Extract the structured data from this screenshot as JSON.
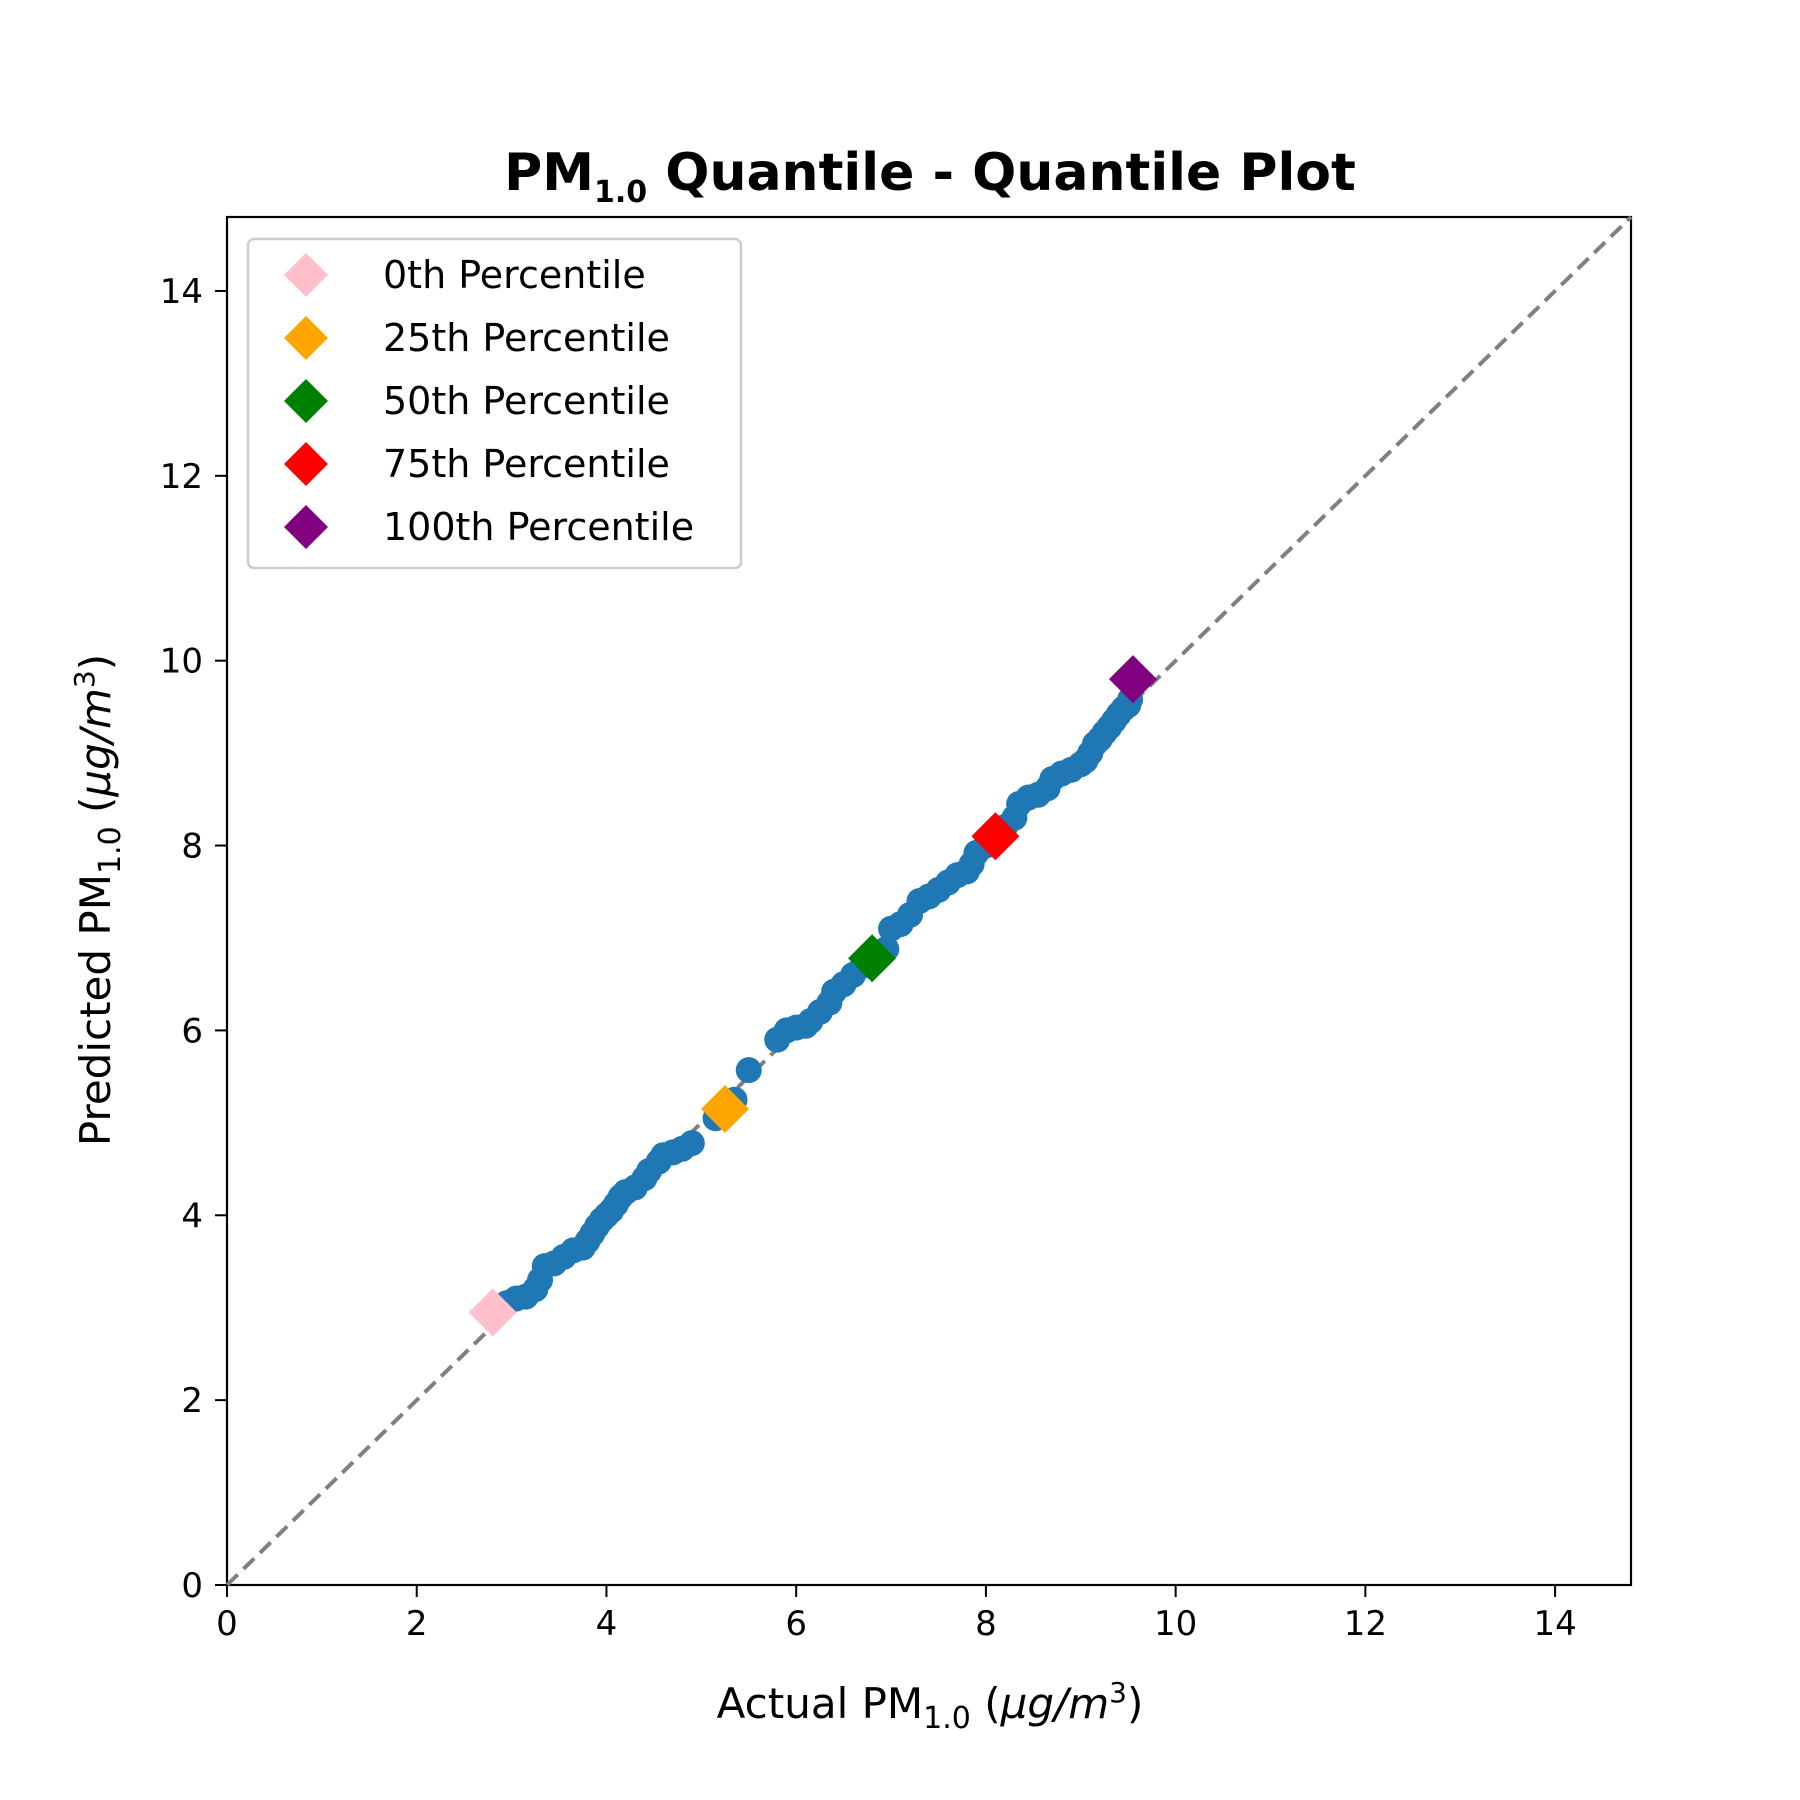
{
  "chart_data": {
    "type": "scatter",
    "title": {
      "main": "PM",
      "sub": "1.0",
      "rest": " Quantile - Quantile Plot"
    },
    "xlabel": {
      "prefix": "Actual PM",
      "sub": "1.0",
      "unit_open": " (",
      "unit_mu": "μg",
      "unit_slash": "/",
      "unit_m": "m",
      "unit_sup": "3",
      "unit_close": ")"
    },
    "ylabel": {
      "prefix": "Predicted PM",
      "sub": "1.0",
      "unit_open": " (",
      "unit_mu": "μg",
      "unit_slash": "/",
      "unit_m": "m",
      "unit_sup": "3",
      "unit_close": ")"
    },
    "xlim": [
      0,
      14.8
    ],
    "ylim": [
      0,
      14.8
    ],
    "xticks": [
      "0",
      "2",
      "4",
      "6",
      "8",
      "10",
      "12",
      "14"
    ],
    "yticks": [
      "0",
      "2",
      "4",
      "6",
      "8",
      "10",
      "12",
      "14"
    ],
    "grid": false,
    "legend_placement": "upper-left",
    "reference_line": {
      "from": [
        0,
        0
      ],
      "to": [
        14.8,
        14.8
      ],
      "style": "dashed",
      "color": "#808080"
    },
    "series": [
      {
        "color": "#1f77b4",
        "marker": "circle",
        "points": [
          [
            2.95,
            3.05
          ],
          [
            3.05,
            3.1
          ],
          [
            3.15,
            3.12
          ],
          [
            3.25,
            3.2
          ],
          [
            3.3,
            3.3
          ],
          [
            3.35,
            3.45
          ],
          [
            3.45,
            3.48
          ],
          [
            3.55,
            3.55
          ],
          [
            3.65,
            3.62
          ],
          [
            3.75,
            3.65
          ],
          [
            3.8,
            3.72
          ],
          [
            3.85,
            3.8
          ],
          [
            3.9,
            3.88
          ],
          [
            3.95,
            3.95
          ],
          [
            4.0,
            4.0
          ],
          [
            4.05,
            4.05
          ],
          [
            4.1,
            4.12
          ],
          [
            4.15,
            4.2
          ],
          [
            4.2,
            4.25
          ],
          [
            4.3,
            4.3
          ],
          [
            4.4,
            4.4
          ],
          [
            4.45,
            4.48
          ],
          [
            4.55,
            4.58
          ],
          [
            4.6,
            4.65
          ],
          [
            4.7,
            4.68
          ],
          [
            4.8,
            4.72
          ],
          [
            4.9,
            4.78
          ],
          [
            5.15,
            5.05
          ],
          [
            5.35,
            5.25
          ],
          [
            5.5,
            5.57
          ],
          [
            5.8,
            5.9
          ],
          [
            5.9,
            6.0
          ],
          [
            6.0,
            6.03
          ],
          [
            6.1,
            6.05
          ],
          [
            6.15,
            6.1
          ],
          [
            6.25,
            6.2
          ],
          [
            6.35,
            6.3
          ],
          [
            6.4,
            6.42
          ],
          [
            6.5,
            6.5
          ],
          [
            6.6,
            6.6
          ],
          [
            6.7,
            6.7
          ],
          [
            6.85,
            6.82
          ],
          [
            6.95,
            6.88
          ],
          [
            7.0,
            7.1
          ],
          [
            7.1,
            7.15
          ],
          [
            7.2,
            7.25
          ],
          [
            7.3,
            7.4
          ],
          [
            7.4,
            7.45
          ],
          [
            7.5,
            7.52
          ],
          [
            7.6,
            7.6
          ],
          [
            7.7,
            7.68
          ],
          [
            7.8,
            7.72
          ],
          [
            7.85,
            7.8
          ],
          [
            7.9,
            7.92
          ],
          [
            8.0,
            8.0
          ],
          [
            8.2,
            8.2
          ],
          [
            8.3,
            8.3
          ],
          [
            8.35,
            8.45
          ],
          [
            8.45,
            8.52
          ],
          [
            8.55,
            8.55
          ],
          [
            8.65,
            8.62
          ],
          [
            8.7,
            8.72
          ],
          [
            8.8,
            8.78
          ],
          [
            8.9,
            8.82
          ],
          [
            9.0,
            8.88
          ],
          [
            9.05,
            8.92
          ],
          [
            9.1,
            9.0
          ],
          [
            9.15,
            9.1
          ],
          [
            9.2,
            9.15
          ],
          [
            9.25,
            9.22
          ],
          [
            9.3,
            9.28
          ],
          [
            9.35,
            9.35
          ],
          [
            9.4,
            9.42
          ],
          [
            9.45,
            9.48
          ],
          [
            9.5,
            9.52
          ],
          [
            9.52,
            9.58
          ]
        ]
      }
    ],
    "percentiles": [
      {
        "label": "0th Percentile",
        "color": "#ffc0cb",
        "x": 2.8,
        "y": 2.95
      },
      {
        "label": "25th Percentile",
        "color": "#ffa500",
        "x": 5.25,
        "y": 5.15
      },
      {
        "label": "50th Percentile",
        "color": "#008000",
        "x": 6.8,
        "y": 6.78
      },
      {
        "label": "75th Percentile",
        "color": "#ff0000",
        "x": 8.1,
        "y": 8.1
      },
      {
        "label": "100th Percentile",
        "color": "#800080",
        "x": 9.55,
        "y": 9.8
      }
    ]
  }
}
